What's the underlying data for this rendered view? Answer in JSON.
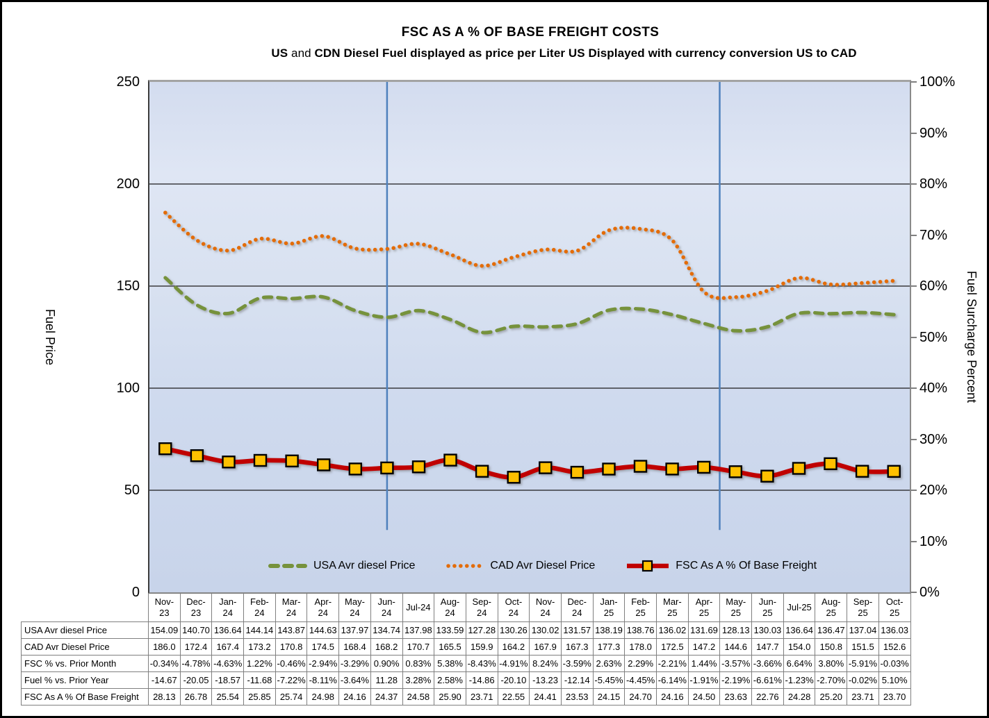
{
  "chart_data": {
    "type": "line",
    "title": "FSC AS A % OF BASE FREIGHT COSTS",
    "subtitle_parts": [
      {
        "text": "US ",
        "bold": true
      },
      {
        "text": "and ",
        "bold": false
      },
      {
        "text": "CDN Diesel Fuel displayed as price per Liter US Displayed with currency conversion US to CAD",
        "bold": true
      }
    ],
    "categories": [
      "Nov-23",
      "Dec-23",
      "Jan-24",
      "Feb-24",
      "Mar-24",
      "Apr-24",
      "May-24",
      "Jun-24",
      "Jul-24",
      "Aug-24",
      "Sep-24",
      "Oct-24",
      "Nov-24",
      "Dec-24",
      "Jan-25",
      "Feb-25",
      "Mar-25",
      "Apr-25",
      "May-25",
      "Jun-25",
      "Jul-25",
      "Aug-25",
      "Sep-25",
      "Oct-25"
    ],
    "left_axis": {
      "label": "Fuel Price",
      "min": 0,
      "max": 250,
      "tick_step": 50
    },
    "right_axis": {
      "label": "Fuel Surcharge Percent",
      "min": 0,
      "max": 100,
      "tick_step": 10,
      "suffix": "%"
    },
    "gridlines_at_left_values": [
      50,
      100,
      150,
      200
    ],
    "vertical_lines": [
      {
        "x_fraction": 0.3125,
        "y_end_fraction": 0.878,
        "color": "#4F81BD"
      },
      {
        "x_fraction": 0.75,
        "y_end_fraction": 0.878,
        "color": "#4F81BD"
      }
    ],
    "series": [
      {
        "name": "USA Avr diesel Price",
        "axis": "left",
        "style": "dashed",
        "color": "#76923C",
        "values": [
          154.09,
          140.7,
          136.64,
          144.14,
          143.87,
          144.63,
          137.97,
          134.74,
          137.98,
          133.59,
          127.28,
          130.26,
          130.02,
          131.57,
          138.19,
          138.76,
          136.02,
          131.69,
          128.13,
          130.03,
          136.64,
          136.47,
          137.04,
          136.03
        ]
      },
      {
        "name": "CAD Avr Diesel Price",
        "axis": "left",
        "style": "dotted",
        "color": "#E36C09",
        "values": [
          186.0,
          172.4,
          167.4,
          173.2,
          170.8,
          174.5,
          168.4,
          168.2,
          170.7,
          165.5,
          159.9,
          164.2,
          167.9,
          167.3,
          177.3,
          178.0,
          172.5,
          147.2,
          144.6,
          147.7,
          154.0,
          150.8,
          151.5,
          152.6
        ]
      },
      {
        "name": "FSC As A % Of Base Freight",
        "axis": "right",
        "style": "solid",
        "color": "#C00000",
        "marker": {
          "shape": "square",
          "fill": "#FFC000",
          "stroke": "#000000"
        },
        "values": [
          28.13,
          26.78,
          25.54,
          25.85,
          25.74,
          24.98,
          24.16,
          24.37,
          24.58,
          25.9,
          23.71,
          22.55,
          24.41,
          23.53,
          24.15,
          24.7,
          24.16,
          24.5,
          23.63,
          22.76,
          24.28,
          25.2,
          23.71,
          23.7
        ]
      }
    ]
  },
  "table": {
    "rows": [
      {
        "label": "USA Avr diesel Price",
        "series_index": 0,
        "decimals": 2
      },
      {
        "label": "CAD Avr Diesel Price",
        "series_index": 1,
        "decimals": 1
      },
      {
        "label": "FSC % vs. Prior Month",
        "cells": [
          "-0.34%",
          "-4.78%",
          "-4.63%",
          "1.22%",
          "-0.46%",
          "-2.94%",
          "-3.29%",
          "0.90%",
          "0.83%",
          "5.38%",
          "-8.43%",
          "-4.91%",
          "8.24%",
          "-3.59%",
          "2.63%",
          "2.29%",
          "-2.21%",
          "1.44%",
          "-3.57%",
          "-3.66%",
          "6.64%",
          "3.80%",
          "-5.91%",
          "-0.03%"
        ]
      },
      {
        "label": "Fuel % vs. Prior Year",
        "cells": [
          "-14.67",
          "-20.05",
          "-18.57",
          "-11.68",
          "-7.22%",
          "-8.11%",
          "-3.64%",
          "11.28",
          "3.28%",
          "2.58%",
          "-14.86",
          "-20.10",
          "-13.23",
          "-12.14",
          "-5.45%",
          "-4.45%",
          "-6.14%",
          "-1.91%",
          "-2.19%",
          "-6.61%",
          "-1.23%",
          "-2.70%",
          "-0.02%",
          "5.10%"
        ]
      },
      {
        "label": "FSC As A % Of Base Freight",
        "series_index": 2,
        "decimals": 2
      }
    ]
  }
}
